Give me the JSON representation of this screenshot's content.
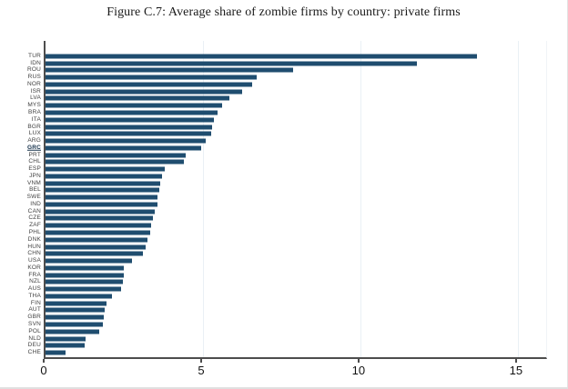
{
  "chart_data": {
    "type": "bar",
    "orientation": "horizontal",
    "title": "Figure C.7: Average share of zombie firms by country: private firms",
    "xlabel": "",
    "ylabel": "",
    "categories": [
      "TUR",
      "IDN",
      "ROU",
      "RUS",
      "NOR",
      "ISR",
      "LVA",
      "MYS",
      "BRA",
      "ITA",
      "BGR",
      "LUX",
      "ARG",
      "GRC",
      "PRT",
      "CHL",
      "ESP",
      "JPN",
      "VNM",
      "BEL",
      "SWE",
      "IND",
      "CAN",
      "CZE",
      "ZAF",
      "PHL",
      "DNK",
      "HUN",
      "CHN",
      "USA",
      "KOR",
      "FRA",
      "NZL",
      "AUS",
      "THA",
      "FIN",
      "AUT",
      "GBR",
      "SVN",
      "POL",
      "NLD",
      "DEU",
      "CHE"
    ],
    "values": [
      13.7,
      11.8,
      7.85,
      6.7,
      6.55,
      6.25,
      5.85,
      5.6,
      5.45,
      5.35,
      5.3,
      5.25,
      5.1,
      4.95,
      4.45,
      4.4,
      3.8,
      3.7,
      3.65,
      3.6,
      3.57,
      3.55,
      3.48,
      3.42,
      3.36,
      3.32,
      3.25,
      3.18,
      3.1,
      2.75,
      2.5,
      2.48,
      2.45,
      2.4,
      2.1,
      1.95,
      1.88,
      1.85,
      1.82,
      1.7,
      1.28,
      1.24,
      0.65
    ],
    "highlighted_category": "GRC",
    "xticks": [
      0,
      5,
      10,
      15
    ],
    "xlim": [
      0,
      15.9
    ],
    "grid": "vertical-faint",
    "legend": "none",
    "bar_color": "#1f4d6f",
    "axis_color": "#4d4d4d"
  }
}
